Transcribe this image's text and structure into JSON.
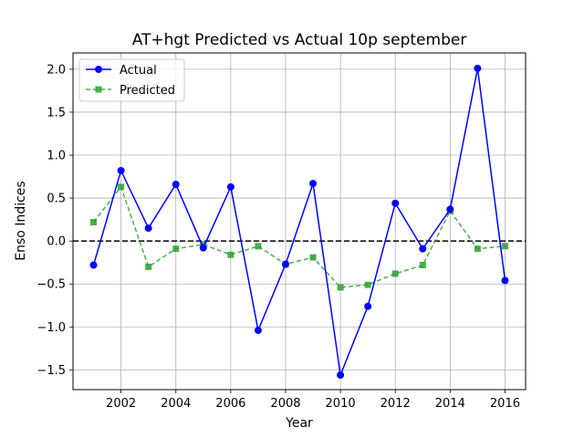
{
  "chart_data": {
    "type": "line",
    "title": "AT+hgt Predicted vs Actual 10p september",
    "xlabel": "Year",
    "ylabel": "Enso Indices",
    "x": [
      2001,
      2002,
      2003,
      2004,
      2005,
      2006,
      2007,
      2008,
      2009,
      2010,
      2011,
      2012,
      2013,
      2014,
      2015,
      2016
    ],
    "xlim": [
      2000.25,
      2016.75
    ],
    "ylim": [
      -1.73,
      2.19
    ],
    "xticks": [
      "2002",
      "2004",
      "2006",
      "2008",
      "2010",
      "2012",
      "2014",
      "2016"
    ],
    "yticks": [
      "−1.5",
      "−1.0",
      "−0.5",
      "0.0",
      "0.5",
      "1.0",
      "1.5",
      "2.0"
    ],
    "grid": true,
    "legend_position": "upper-left",
    "reference_line": 0.0,
    "series": [
      {
        "name": "Actual",
        "color": "#0000ff",
        "style": "solid",
        "marker": "circle",
        "values": [
          -0.28,
          0.82,
          0.15,
          0.66,
          -0.08,
          0.63,
          -1.04,
          -0.27,
          0.67,
          -1.56,
          -0.76,
          0.44,
          -0.09,
          0.37,
          2.01,
          -0.46
        ]
      },
      {
        "name": "Predicted",
        "color": "#2ca02c",
        "style": "dashed",
        "marker": "square",
        "values": [
          0.22,
          0.63,
          -0.3,
          -0.09,
          -0.04,
          -0.16,
          -0.06,
          -0.27,
          -0.19,
          -0.54,
          -0.51,
          -0.38,
          -0.28,
          0.35,
          -0.09,
          -0.06
        ]
      }
    ]
  }
}
